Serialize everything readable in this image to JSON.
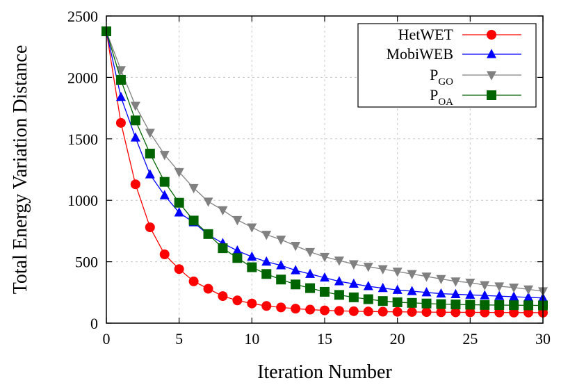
{
  "chart_data": {
    "type": "line",
    "title": "",
    "xlabel": "Iteration Number",
    "ylabel": "Total Energy Variation Distance",
    "xlim": [
      0,
      30
    ],
    "ylim": [
      0,
      2500
    ],
    "xticks": [
      0,
      5,
      10,
      15,
      20,
      25,
      30
    ],
    "yticks": [
      0,
      500,
      1000,
      1500,
      2000,
      2500
    ],
    "grid": true,
    "legend_position": "top-right",
    "x": [
      0,
      1,
      2,
      3,
      4,
      5,
      6,
      7,
      8,
      9,
      10,
      11,
      12,
      13,
      14,
      15,
      16,
      17,
      18,
      19,
      20,
      21,
      22,
      23,
      24,
      25,
      26,
      27,
      28,
      29,
      30
    ],
    "series": [
      {
        "name": "HetWET",
        "name_main": "HetWET",
        "name_sub": "",
        "color": "#ff0000",
        "marker": "circle",
        "values": [
          2375,
          1630,
          1130,
          780,
          560,
          440,
          340,
          280,
          220,
          185,
          160,
          140,
          128,
          118,
          110,
          104,
          100,
          97,
          95,
          93,
          92,
          91,
          90,
          89,
          88,
          88,
          87,
          87,
          86,
          86,
          85
        ]
      },
      {
        "name": "MobiWEB",
        "name_main": "MobiWEB",
        "name_sub": "",
        "color": "#0000ff",
        "marker": "triangle-up",
        "values": [
          2375,
          1840,
          1510,
          1210,
          1040,
          900,
          820,
          720,
          650,
          590,
          540,
          500,
          470,
          430,
          400,
          370,
          340,
          320,
          300,
          285,
          270,
          260,
          250,
          240,
          235,
          230,
          225,
          220,
          215,
          210,
          205
        ]
      },
      {
        "name": "PGO",
        "name_main": "P",
        "name_sub": "GO",
        "color": "#808080",
        "marker": "triangle-down",
        "values": [
          2375,
          2060,
          1770,
          1550,
          1370,
          1230,
          1100,
          990,
          920,
          840,
          780,
          720,
          680,
          630,
          580,
          540,
          510,
          480,
          460,
          440,
          420,
          400,
          380,
          360,
          340,
          330,
          310,
          300,
          290,
          275,
          260
        ]
      },
      {
        "name": "POA",
        "name_main": "P",
        "name_sub": "OA",
        "color": "#006400",
        "marker": "square",
        "values": [
          2375,
          1980,
          1650,
          1380,
          1150,
          980,
          835,
          725,
          610,
          530,
          455,
          400,
          355,
          315,
          285,
          255,
          230,
          210,
          195,
          180,
          170,
          165,
          160,
          155,
          152,
          150,
          148,
          147,
          146,
          145,
          144
        ]
      }
    ]
  }
}
